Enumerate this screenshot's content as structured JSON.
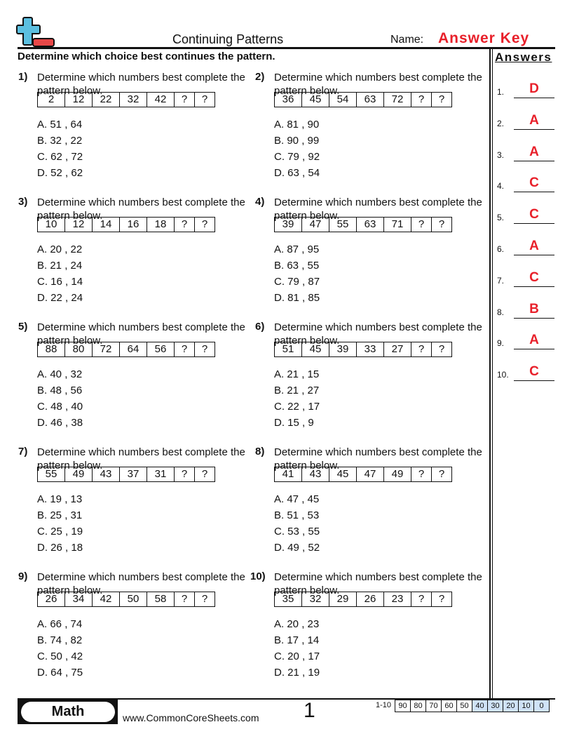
{
  "header": {
    "title": "Continuing Patterns",
    "name_label": "Name:",
    "name_value": "Answer Key",
    "instructions": "Determine which choice best continues the pattern.",
    "answers_heading": "Answers"
  },
  "questions": [
    {
      "num": "1)",
      "text": "Determine which numbers best complete the pattern below.",
      "pattern": [
        "2",
        "12",
        "22",
        "32",
        "42",
        "?",
        "?"
      ],
      "options": [
        "A. 51 , 64",
        "B. 32 , 22",
        "C. 62 , 72",
        "D. 52 , 62"
      ]
    },
    {
      "num": "2)",
      "text": "Determine which numbers best complete the pattern below.",
      "pattern": [
        "36",
        "45",
        "54",
        "63",
        "72",
        "?",
        "?"
      ],
      "options": [
        "A. 81 , 90",
        "B. 90 , 99",
        "C. 79 , 92",
        "D. 63 , 54"
      ]
    },
    {
      "num": "3)",
      "text": "Determine which numbers best complete the pattern below.",
      "pattern": [
        "10",
        "12",
        "14",
        "16",
        "18",
        "?",
        "?"
      ],
      "options": [
        "A. 20 , 22",
        "B. 21 , 24",
        "C. 16 , 14",
        "D. 22 , 24"
      ]
    },
    {
      "num": "4)",
      "text": "Determine which numbers best complete the pattern below.",
      "pattern": [
        "39",
        "47",
        "55",
        "63",
        "71",
        "?",
        "?"
      ],
      "options": [
        "A. 87 , 95",
        "B. 63 , 55",
        "C. 79 , 87",
        "D. 81 , 85"
      ]
    },
    {
      "num": "5)",
      "text": "Determine which numbers best complete the pattern below.",
      "pattern": [
        "88",
        "80",
        "72",
        "64",
        "56",
        "?",
        "?"
      ],
      "options": [
        "A. 40 , 32",
        "B. 48 , 56",
        "C. 48 , 40",
        "D. 46 , 38"
      ]
    },
    {
      "num": "6)",
      "text": "Determine which numbers best complete the pattern below.",
      "pattern": [
        "51",
        "45",
        "39",
        "33",
        "27",
        "?",
        "?"
      ],
      "options": [
        "A. 21 , 15",
        "B. 21 , 27",
        "C. 22 , 17",
        "D. 15 , 9"
      ]
    },
    {
      "num": "7)",
      "text": "Determine which numbers best complete the pattern below.",
      "pattern": [
        "55",
        "49",
        "43",
        "37",
        "31",
        "?",
        "?"
      ],
      "options": [
        "A. 19 , 13",
        "B. 25 , 31",
        "C. 25 , 19",
        "D. 26 , 18"
      ]
    },
    {
      "num": "8)",
      "text": "Determine which numbers best complete the pattern below.",
      "pattern": [
        "41",
        "43",
        "45",
        "47",
        "49",
        "?",
        "?"
      ],
      "options": [
        "A. 47 , 45",
        "B. 51 , 53",
        "C. 53 , 55",
        "D. 49 , 52"
      ]
    },
    {
      "num": "9)",
      "text": "Determine which numbers best complete the pattern below.",
      "pattern": [
        "26",
        "34",
        "42",
        "50",
        "58",
        "?",
        "?"
      ],
      "options": [
        "A. 66 , 74",
        "B. 74 , 82",
        "C. 50 , 42",
        "D. 64 , 75"
      ]
    },
    {
      "num": "10)",
      "text": "Determine which numbers best complete the pattern below.",
      "pattern": [
        "35",
        "32",
        "29",
        "26",
        "23",
        "?",
        "?"
      ],
      "options": [
        "A. 20 , 23",
        "B. 17 , 14",
        "C. 20 , 17",
        "D. 21 , 19"
      ]
    }
  ],
  "answers": [
    {
      "label": "1.",
      "value": "D"
    },
    {
      "label": "2.",
      "value": "A"
    },
    {
      "label": "3.",
      "value": "A"
    },
    {
      "label": "4.",
      "value": "C"
    },
    {
      "label": "5.",
      "value": "C"
    },
    {
      "label": "6.",
      "value": "A"
    },
    {
      "label": "7.",
      "value": "C"
    },
    {
      "label": "8.",
      "value": "B"
    },
    {
      "label": "9.",
      "value": "A"
    },
    {
      "label": "10.",
      "value": "C"
    }
  ],
  "footer": {
    "subject": "Math",
    "website": "www.CommonCoreSheets.com",
    "page_number": "1",
    "score_label": "1-10",
    "scores": [
      "90",
      "80",
      "70",
      "60",
      "50",
      "40",
      "30",
      "20",
      "10",
      "0"
    ]
  },
  "colors": {
    "answer_red": "#e8202a",
    "logo_blue": "#5bbfe0",
    "logo_red": "#e84848",
    "score_highlight": "#cfe2f7"
  }
}
